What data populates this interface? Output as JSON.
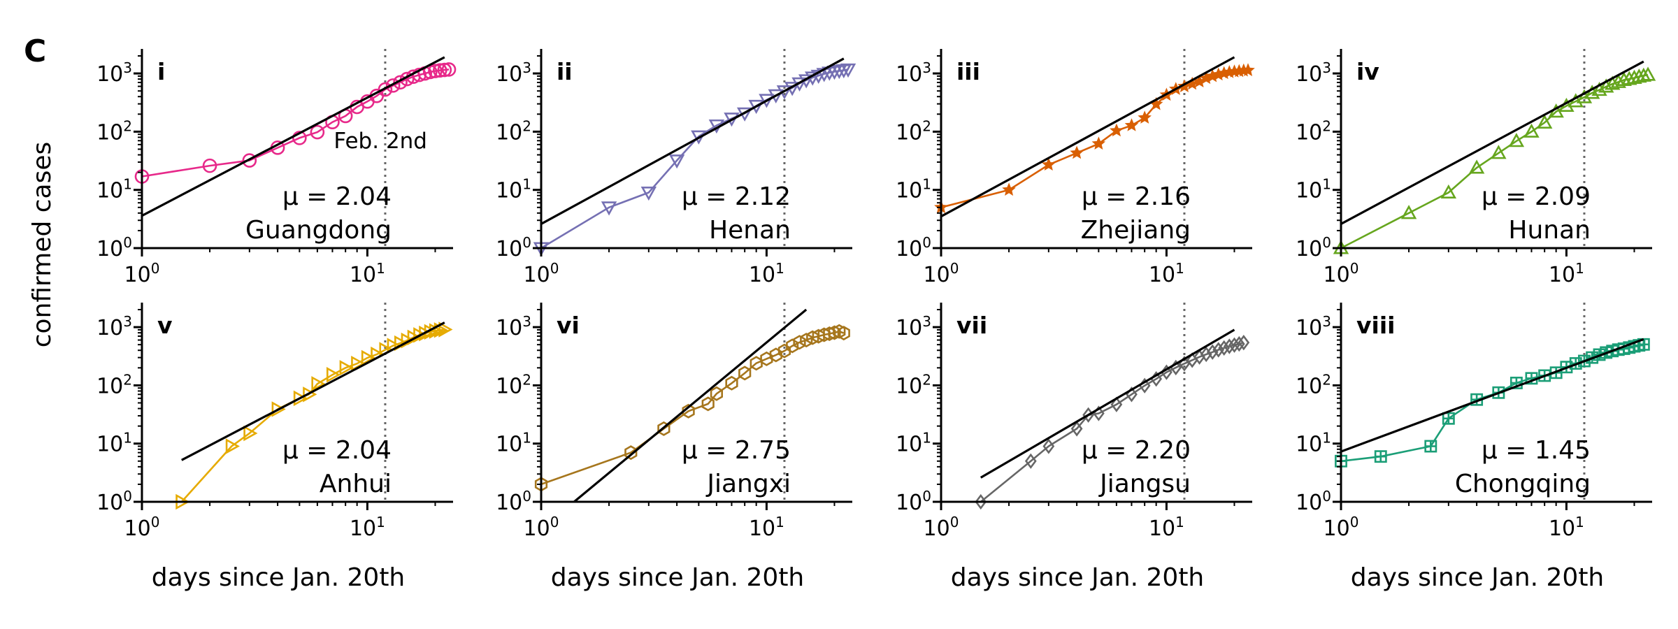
{
  "figure": {
    "panel_letter": "C",
    "ylabel": "confirmed cases",
    "xlabel": "days since Jan. 20th"
  },
  "chart_data": [
    {
      "type": "line",
      "panel": "i",
      "region": "Guangdong",
      "mu_label": "μ = 2.04",
      "mu": 2.04,
      "annotation": "Feb. 2nd",
      "color": "#e7298a",
      "marker": "circle",
      "x_scale": "log",
      "y_scale": "log",
      "xlim": [
        1,
        24
      ],
      "ylim": [
        1,
        2000
      ],
      "x_ticks": [
        "10^0",
        "10^1"
      ],
      "y_ticks": [
        "10^0",
        "10^1",
        "10^2",
        "10^3"
      ],
      "vline_x": 12,
      "x": [
        1,
        2,
        3,
        4,
        5,
        6,
        7,
        8,
        9,
        10,
        11,
        12,
        13,
        14,
        15,
        16,
        17,
        18,
        19,
        20,
        21,
        22,
        23
      ],
      "y": [
        17,
        26,
        32,
        53,
        78,
        98,
        146,
        186,
        266,
        330,
        412,
        530,
        620,
        704,
        803,
        880,
        945,
        1000,
        1060,
        1100,
        1130,
        1150,
        1170
      ],
      "fit": [
        [
          1,
          3.6
        ],
        [
          22,
          1900
        ]
      ]
    },
    {
      "type": "line",
      "panel": "ii",
      "region": "Henan",
      "mu_label": "μ = 2.12",
      "mu": 2.12,
      "color": "#7570b3",
      "marker": "triangle-down",
      "x_scale": "log",
      "y_scale": "log",
      "xlim": [
        1,
        24
      ],
      "ylim": [
        1,
        2000
      ],
      "x_ticks": [
        "10^0",
        "10^1"
      ],
      "y_ticks": [
        "10^0",
        "10^1",
        "10^2",
        "10^3"
      ],
      "vline_x": 12,
      "x": [
        1,
        2,
        3,
        4,
        5,
        6,
        7,
        8,
        9,
        10,
        11,
        12,
        13,
        14,
        15,
        16,
        17,
        18,
        19,
        20,
        21,
        22,
        23
      ],
      "y": [
        1,
        5,
        9,
        32,
        83,
        128,
        168,
        206,
        278,
        352,
        422,
        493,
        566,
        675,
        764,
        851,
        914,
        981,
        1033,
        1073,
        1105,
        1135,
        1170
      ],
      "fit": [
        [
          1,
          2.6
        ],
        [
          22,
          1800
        ]
      ]
    },
    {
      "type": "line",
      "panel": "iii",
      "region": "Zhejiang",
      "mu_label": "μ = 2.16",
      "mu": 2.16,
      "color": "#d95f02",
      "marker": "star",
      "x_scale": "log",
      "y_scale": "log",
      "xlim": [
        1,
        24
      ],
      "ylim": [
        1,
        2000
      ],
      "x_ticks": [
        "10^0",
        "10^1"
      ],
      "y_ticks": [
        "10^0",
        "10^1",
        "10^2",
        "10^3"
      ],
      "vline_x": 12,
      "x": [
        1,
        2,
        3,
        4,
        5,
        6,
        7,
        8,
        9,
        10,
        11,
        12,
        13,
        14,
        15,
        16,
        17,
        18,
        19,
        20,
        21,
        22,
        23
      ],
      "y": [
        5,
        10,
        27,
        43,
        62,
        104,
        128,
        173,
        296,
        428,
        538,
        599,
        661,
        724,
        829,
        895,
        954,
        1006,
        1048,
        1075,
        1092,
        1117,
        1131
      ],
      "fit": [
        [
          1,
          3.5
        ],
        [
          20,
          1900
        ]
      ]
    },
    {
      "type": "line",
      "panel": "iv",
      "region": "Hunan",
      "mu_label": "μ = 2.09",
      "mu": 2.09,
      "color": "#66a61e",
      "marker": "triangle-up",
      "x_scale": "log",
      "y_scale": "log",
      "xlim": [
        1,
        24
      ],
      "ylim": [
        1,
        2000
      ],
      "x_ticks": [
        "10^0",
        "10^1"
      ],
      "y_ticks": [
        "10^0",
        "10^1",
        "10^2",
        "10^3"
      ],
      "vline_x": 12,
      "x": [
        1,
        2,
        3,
        4,
        5,
        6,
        7,
        8,
        9,
        10,
        11,
        12,
        13,
        14,
        15,
        16,
        17,
        18,
        19,
        20,
        21,
        22,
        23
      ],
      "y": [
        1,
        4,
        9,
        24,
        43,
        69,
        100,
        143,
        221,
        277,
        332,
        389,
        463,
        521,
        593,
        661,
        711,
        772,
        803,
        838,
        879,
        912,
        946
      ],
      "fit": [
        [
          1,
          2.6
        ],
        [
          22,
          1600
        ]
      ]
    },
    {
      "type": "line",
      "panel": "v",
      "region": "Anhui",
      "mu_label": "μ = 2.04",
      "mu": 2.04,
      "color": "#e6ab02",
      "marker": "triangle-right",
      "x_scale": "log",
      "y_scale": "log",
      "xlim": [
        1,
        24
      ],
      "ylim": [
        1,
        2000
      ],
      "x_ticks": [
        "10^0",
        "10^1"
      ],
      "y_ticks": [
        "10^0",
        "10^1",
        "10^2",
        "10^3"
      ],
      "vline_x": 12,
      "x": [
        1.5,
        2.5,
        3,
        4,
        5,
        5.5,
        6,
        7,
        8,
        9,
        10,
        11,
        12,
        13,
        14,
        15,
        16,
        17,
        18,
        19,
        20,
        21,
        22
      ],
      "y": [
        1,
        9,
        15,
        39,
        60,
        70,
        106,
        152,
        200,
        237,
        297,
        340,
        408,
        480,
        530,
        591,
        665,
        733,
        779,
        830,
        860,
        889,
        910
      ],
      "fit": [
        [
          1.5,
          5.2
        ],
        [
          22,
          1200
        ]
      ]
    },
    {
      "type": "line",
      "panel": "vi",
      "region": "Jiangxi",
      "mu_label": "μ = 2.75",
      "mu": 2.75,
      "color": "#a6761d",
      "marker": "hexagon",
      "x_scale": "log",
      "y_scale": "log",
      "xlim": [
        1,
        24
      ],
      "ylim": [
        1,
        2000
      ],
      "x_ticks": [
        "10^0",
        "10^1"
      ],
      "y_ticks": [
        "10^0",
        "10^1",
        "10^2",
        "10^3"
      ],
      "vline_x": 12,
      "x": [
        1,
        2.5,
        3.5,
        4.5,
        5.5,
        6,
        7,
        8,
        9,
        10,
        11,
        12,
        13,
        14,
        15,
        16,
        17,
        18,
        19,
        20,
        21,
        22
      ],
      "y": [
        2,
        7,
        18,
        36,
        48,
        72,
        109,
        162,
        240,
        286,
        333,
        391,
        476,
        548,
        600,
        661,
        698,
        740,
        771,
        804,
        844,
        790
      ],
      "fit": [
        [
          1.4,
          1
        ],
        [
          15,
          2000
        ]
      ]
    },
    {
      "type": "line",
      "panel": "vii",
      "region": "Jiangsu",
      "mu_label": "μ = 2.20",
      "mu": 2.2,
      "color": "#666666",
      "marker": "diamond",
      "x_scale": "log",
      "y_scale": "log",
      "xlim": [
        1,
        24
      ],
      "ylim": [
        1,
        2000
      ],
      "x_ticks": [
        "10^0",
        "10^1"
      ],
      "y_ticks": [
        "10^0",
        "10^1",
        "10^2",
        "10^3"
      ],
      "vline_x": 12,
      "x": [
        1.5,
        2.5,
        3,
        4,
        4.5,
        5,
        6,
        7,
        8,
        9,
        10,
        11,
        12,
        13,
        14,
        15,
        16,
        17,
        18,
        19,
        20,
        21,
        22
      ],
      "y": [
        1,
        5,
        9,
        18,
        31,
        33,
        47,
        70,
        99,
        129,
        168,
        202,
        236,
        271,
        308,
        341,
        373,
        408,
        439,
        468,
        492,
        515,
        543
      ],
      "fit": [
        [
          1.5,
          2.6
        ],
        [
          20,
          900
        ]
      ]
    },
    {
      "type": "line",
      "panel": "viii",
      "region": "Chongqing",
      "mu_label": "μ = 1.45",
      "mu": 1.45,
      "color": "#1b9e77",
      "marker": "plus-square",
      "x_scale": "log",
      "y_scale": "log",
      "xlim": [
        1,
        24
      ],
      "ylim": [
        1,
        2000
      ],
      "x_ticks": [
        "10^0",
        "10^1"
      ],
      "y_ticks": [
        "10^0",
        "10^1",
        "10^2",
        "10^3"
      ],
      "vline_x": 12,
      "x": [
        1,
        1.5,
        2.5,
        3,
        4,
        5,
        6,
        7,
        8,
        9,
        10,
        11,
        12,
        13,
        14,
        15,
        16,
        17,
        18,
        19,
        20,
        21,
        22
      ],
      "y": [
        5,
        6,
        9,
        27,
        57,
        75,
        110,
        132,
        147,
        165,
        206,
        238,
        262,
        300,
        337,
        366,
        389,
        411,
        426,
        446,
        468,
        486,
        505
      ],
      "fit": [
        [
          1,
          7.3
        ],
        [
          22,
          620
        ]
      ]
    }
  ]
}
